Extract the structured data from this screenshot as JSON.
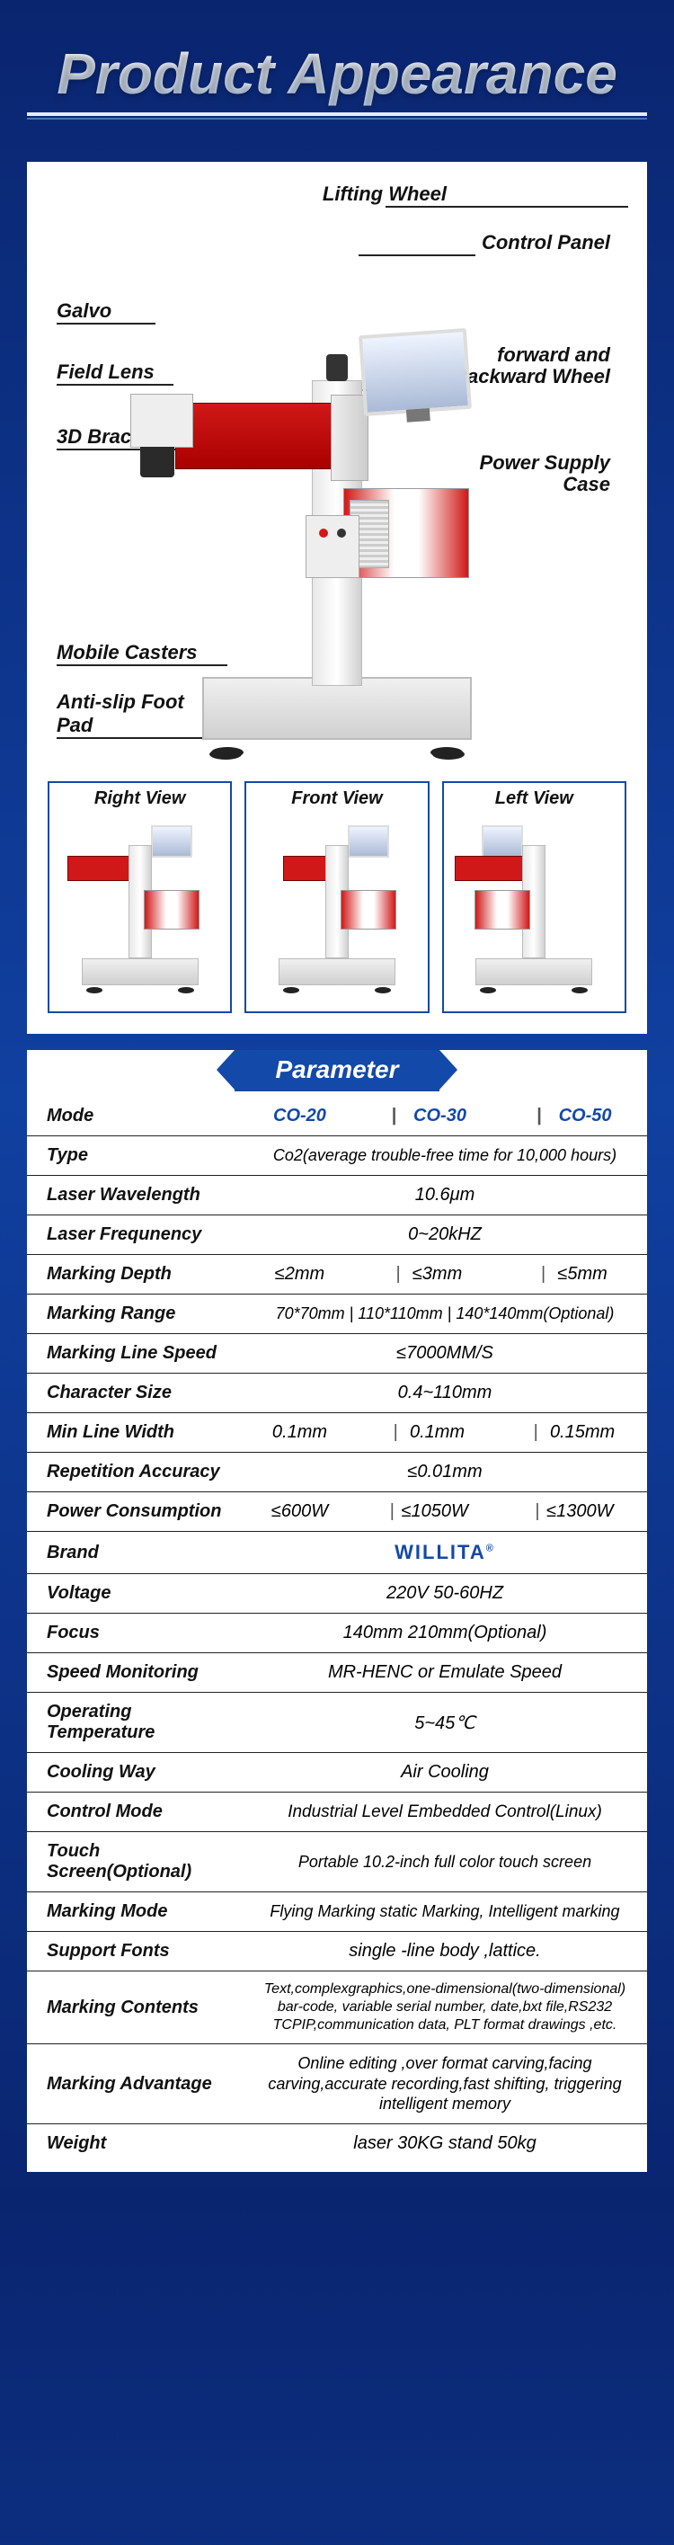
{
  "title": "Product Appearance",
  "callouts": {
    "lifting_wheel": "Lifting Wheel",
    "control_panel": "Control Panel",
    "forward_wheel": "forward and Backward Wheel",
    "power_supply": "Power Supply Case",
    "galvo": "Galvo",
    "field_lens": "Field Lens",
    "bracket3d": "3D Bracket",
    "mobile_casters": "Mobile Casters",
    "anti_slip": "Anti-slip Foot Pad"
  },
  "views": {
    "right": "Right View",
    "front": "Front View",
    "left": "Left View"
  },
  "param_banner": "Parameter",
  "mode_label": "Mode",
  "modes": [
    "CO-20",
    "CO-30",
    "CO-50"
  ],
  "rows": {
    "type": {
      "label": "Type",
      "value": "Co2(average trouble-free time for 10,000 hours)"
    },
    "wavelength": {
      "label": "Laser Wavelength",
      "value": "10.6μm"
    },
    "frequency": {
      "label": "Laser Frequnency",
      "value": "0~20kHZ"
    },
    "depth": {
      "label": "Marking Depth",
      "v": [
        "≤2mm",
        "≤3mm",
        "≤5mm"
      ]
    },
    "range": {
      "label": "Marking Range",
      "value": "70*70mm | 110*110mm | 140*140mm(Optional)"
    },
    "line_speed": {
      "label": "Marking Line Speed",
      "value": "≤7000MM/S"
    },
    "char_size": {
      "label": "Character Size",
      "value": "0.4~110mm"
    },
    "min_line": {
      "label": "Min Line Width",
      "v": [
        "0.1mm",
        "0.1mm",
        "0.15mm"
      ]
    },
    "rep_acc": {
      "label": "Repetition Accuracy",
      "value": "≤0.01mm"
    },
    "power": {
      "label": "Power Consumption",
      "v": [
        "≤600W",
        "≤1050W",
        "≤1300W"
      ]
    },
    "brand": {
      "label": "Brand",
      "value": "WILLITA"
    },
    "voltage": {
      "label": "Voltage",
      "value": "220V  50-60HZ"
    },
    "focus": {
      "label": "Focus",
      "value": "140mm   210mm(Optional)"
    },
    "speed_mon": {
      "label": "Speed Monitoring",
      "value": "MR-HENC or Emulate Speed"
    },
    "op_temp": {
      "label": "Operating Temperature",
      "value": "5~45℃"
    },
    "cooling": {
      "label": "Cooling Way",
      "value": "Air Cooling"
    },
    "control": {
      "label": "Control Mode",
      "value": "Industrial Level Embedded Control(Linux)"
    },
    "touch": {
      "label": "Touch Screen(Optional)",
      "value": "Portable 10.2-inch full color touch screen"
    },
    "mark_mode": {
      "label": "Marking Mode",
      "value": "Flying Marking static Marking, Intelligent marking"
    },
    "fonts": {
      "label": "Support Fonts",
      "value": "single -line body ,lattice."
    },
    "contents": {
      "label": "Marking Contents",
      "value": "Text,complexgraphics,one-dimensional(two-dimensional) bar-code, variable serial number, date,bxt file,RS232 TCPIP,communication data, PLT format drawings ,etc."
    },
    "advantage": {
      "label": "Marking Advantage",
      "value": "Online editing ,over format carving,facing carving,accurate recording,fast shifting, triggering intelligent memory"
    },
    "weight": {
      "label": "Weight",
      "value": "laser 30KG stand 50kg"
    }
  },
  "colors": {
    "brand_blue": "#1349a8",
    "machine_red": "#d01818",
    "bg_top": "#0a2570"
  }
}
